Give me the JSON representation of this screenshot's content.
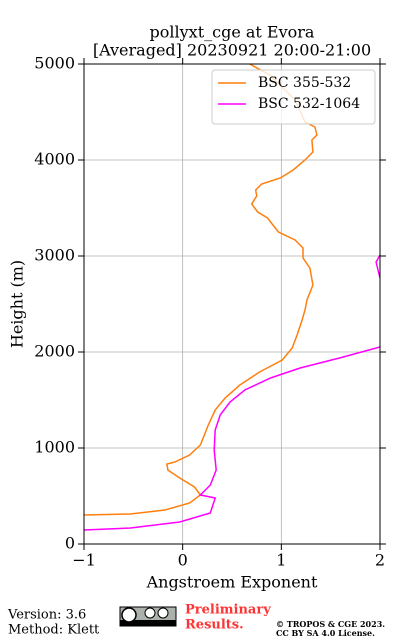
{
  "chart_data": {
    "type": "line",
    "title": "pollyxt_cge at Evora",
    "subtitle": "[Averaged] 20230921 20:00-21:00",
    "x_label": "Angstroem Exponent",
    "y_label": "Height (m)",
    "xlim": [
      -1,
      2
    ],
    "ylim": [
      0,
      5000
    ],
    "xticks": [
      {
        "value": -1,
        "label": "−1"
      },
      0,
      1,
      2
    ],
    "yticks": [
      0,
      1000,
      2000,
      3000,
      4000,
      5000
    ],
    "grid": true,
    "legend": "upper right",
    "series": [
      {
        "name": "BSC 355-532",
        "color": "#ff7f0e",
        "y": [
          5000,
          4885,
          4625,
          4396,
          4344,
          4260,
          4208,
          4083,
          4000,
          3896,
          3812,
          3750,
          3688,
          3625,
          3542,
          3458,
          3396,
          3250,
          3167,
          3083,
          2979,
          2875,
          2698,
          2542,
          2438,
          2333,
          2177,
          2042,
          1917,
          1792,
          1656,
          1521,
          1396,
          1240,
          1031,
          927,
          854,
          833,
          771,
          688,
          594,
          510,
          427,
          354,
          312,
          302
        ],
        "values": [
          0.68,
          0.88,
          1.14,
          1.24,
          1.34,
          1.36,
          1.31,
          1.32,
          1.24,
          1.12,
          0.99,
          0.8,
          0.74,
          0.75,
          0.7,
          0.76,
          0.86,
          0.97,
          1.14,
          1.22,
          1.22,
          1.29,
          1.32,
          1.26,
          1.24,
          1.21,
          1.16,
          1.11,
          1.01,
          0.78,
          0.58,
          0.43,
          0.33,
          0.26,
          0.18,
          0.07,
          -0.08,
          -0.16,
          -0.15,
          -0.03,
          0.12,
          0.18,
          0.07,
          -0.18,
          -0.53,
          -1.0
        ]
      },
      {
        "name": "BSC 532-1064",
        "color": "#ff00ff",
        "y": [
          3010,
          2938,
          2854,
          2771,
          2400,
          2052,
          1938,
          1833,
          1729,
          1604,
          1479,
          1344,
          1188,
          979,
          771,
          615,
          510,
          479,
          323,
          229,
          167,
          146
        ],
        "values": [
          2.0,
          1.96,
          1.98,
          2.0,
          null,
          2.0,
          1.59,
          1.19,
          0.89,
          0.63,
          0.48,
          0.38,
          0.33,
          0.32,
          0.34,
          0.28,
          0.18,
          0.33,
          0.28,
          -0.03,
          -0.53,
          -1.0
        ]
      }
    ]
  },
  "footer": {
    "version": "Version: 3.6",
    "method": "Method: Klett",
    "preliminary": [
      "Preliminary",
      "Results."
    ],
    "copyright": "© TROPOS & CGE 2023.",
    "license": "CC BY SA 4.0 License."
  }
}
